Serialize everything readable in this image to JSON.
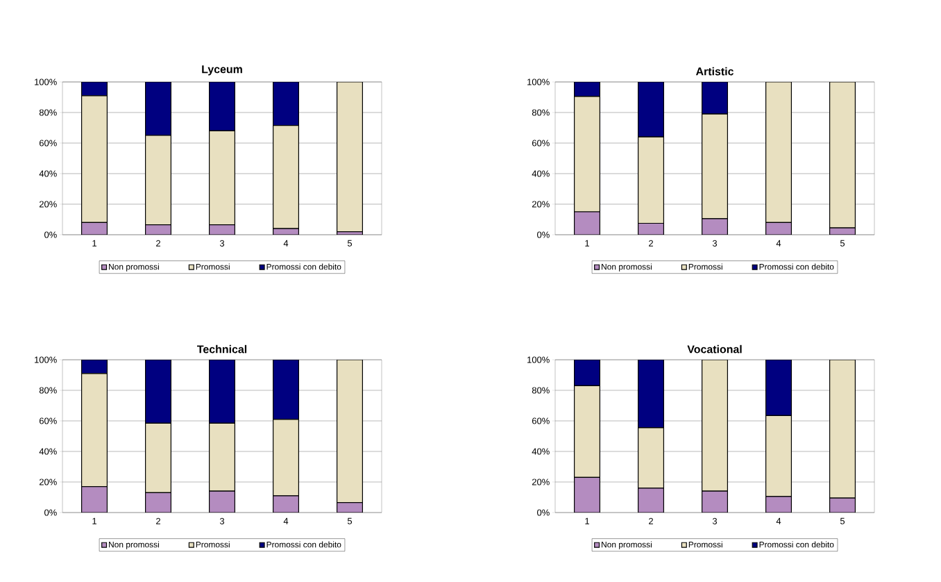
{
  "chart_data": [
    {
      "type": "bar",
      "title": "Lyceum",
      "stacked": true,
      "categories": [
        "1",
        "2",
        "3",
        "4",
        "5"
      ],
      "ylim": [
        0,
        100
      ],
      "yticks": [
        {
          "value": 0,
          "label": "0%"
        },
        {
          "value": 20,
          "label": "20%"
        },
        {
          "value": 40,
          "label": "40%"
        },
        {
          "value": 60,
          "label": "60%"
        },
        {
          "value": 80,
          "label": "80%"
        },
        {
          "value": 100,
          "label": "100%"
        }
      ],
      "grid": "y",
      "legend": "bottom",
      "series": [
        {
          "name": "Non promossi",
          "color": "#b48cc0",
          "values": [
            8,
            6.5,
            6.5,
            4,
            2
          ]
        },
        {
          "name": "Promossi",
          "color": "#e8e0c0",
          "values": [
            83,
            58.5,
            61.5,
            67.5,
            98
          ]
        },
        {
          "name": "Promossi con debito",
          "color": "#000080",
          "values": [
            9,
            35,
            32,
            28.5,
            0
          ]
        }
      ]
    },
    {
      "type": "bar",
      "title": "Artistic",
      "stacked": true,
      "categories": [
        "1",
        "2",
        "3",
        "4",
        "5"
      ],
      "ylim": [
        0,
        100
      ],
      "yticks": [
        {
          "value": 0,
          "label": "0%"
        },
        {
          "value": 20,
          "label": "20%"
        },
        {
          "value": 40,
          "label": "40%"
        },
        {
          "value": 60,
          "label": "60%"
        },
        {
          "value": 80,
          "label": "80%"
        },
        {
          "value": 100,
          "label": "100%"
        }
      ],
      "grid": "y",
      "legend": "bottom",
      "series": [
        {
          "name": "Non promossi",
          "color": "#b48cc0",
          "values": [
            15,
            7.5,
            10.5,
            8,
            4.5
          ]
        },
        {
          "name": "Promossi",
          "color": "#e8e0c0",
          "values": [
            75.5,
            56.5,
            68.5,
            92,
            95.5
          ]
        },
        {
          "name": "Promossi con debito",
          "color": "#000080",
          "values": [
            9.5,
            36,
            21,
            0,
            0
          ]
        }
      ]
    },
    {
      "type": "bar",
      "title": "Technical",
      "stacked": true,
      "categories": [
        "1",
        "2",
        "3",
        "4",
        "5"
      ],
      "ylim": [
        0,
        100
      ],
      "yticks": [
        {
          "value": 0,
          "label": "0%"
        },
        {
          "value": 20,
          "label": "20%"
        },
        {
          "value": 40,
          "label": "40%"
        },
        {
          "value": 60,
          "label": "60%"
        },
        {
          "value": 80,
          "label": "80%"
        },
        {
          "value": 100,
          "label": "100%"
        }
      ],
      "grid": "y",
      "legend": "bottom",
      "series": [
        {
          "name": "Non promossi",
          "color": "#b48cc0",
          "values": [
            17,
            13,
            14,
            11,
            6.5
          ]
        },
        {
          "name": "Promossi",
          "color": "#e8e0c0",
          "values": [
            74,
            45.5,
            44.5,
            50,
            93.5
          ]
        },
        {
          "name": "Promossi con debito",
          "color": "#000080",
          "values": [
            9,
            41.5,
            41.5,
            39,
            0
          ]
        }
      ]
    },
    {
      "type": "bar",
      "title": "Vocational",
      "stacked": true,
      "categories": [
        "1",
        "2",
        "3",
        "4",
        "5"
      ],
      "ylim": [
        0,
        100
      ],
      "yticks": [
        {
          "value": 0,
          "label": "0%"
        },
        {
          "value": 20,
          "label": "20%"
        },
        {
          "value": 40,
          "label": "40%"
        },
        {
          "value": 60,
          "label": "60%"
        },
        {
          "value": 80,
          "label": "80%"
        },
        {
          "value": 100,
          "label": "100%"
        }
      ],
      "grid": "y",
      "legend": "bottom",
      "series": [
        {
          "name": "Non promossi",
          "color": "#b48cc0",
          "values": [
            23,
            16,
            14,
            10.5,
            9.5
          ]
        },
        {
          "name": "Promossi",
          "color": "#e8e0c0",
          "values": [
            60,
            39.5,
            86,
            53,
            90.5
          ]
        },
        {
          "name": "Promossi con debito",
          "color": "#000080",
          "values": [
            17,
            44.5,
            0,
            36.5,
            0
          ]
        }
      ]
    }
  ]
}
